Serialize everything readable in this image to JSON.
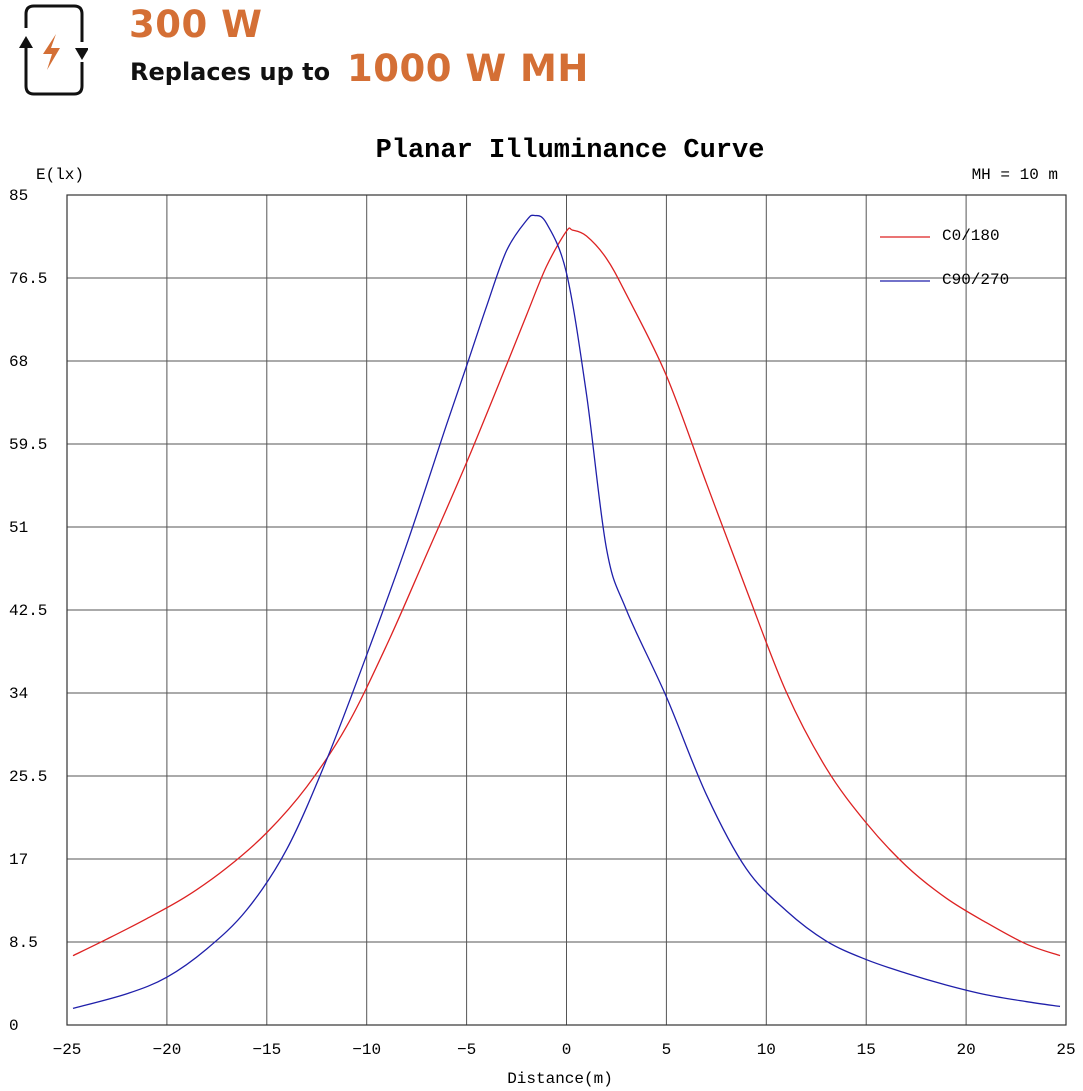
{
  "header": {
    "power": "300 W",
    "replaces_label": "Replaces up to",
    "replaces_value": "1000 W MH",
    "icon": "power-cycle-lightning-icon",
    "accent_color": "#d46f35"
  },
  "chart_data": {
    "type": "line",
    "title": "Planar Illuminance Curve",
    "xlabel": "Distance(m)",
    "ylabel": "E(lx)",
    "annotation": "MH = 10 m",
    "xlim": [
      -25,
      25
    ],
    "ylim": [
      0,
      85
    ],
    "x_ticks": [
      -25,
      -20,
      -15,
      -10,
      -5,
      0,
      5,
      10,
      15,
      20,
      25
    ],
    "y_ticks": [
      0,
      8.5,
      17,
      25.5,
      34,
      42.5,
      51,
      59.5,
      68,
      76.5,
      85
    ],
    "grid": true,
    "legend_position": "top-right",
    "series": [
      {
        "name": "C0/180",
        "color": "#dd2222",
        "x": [
          -24.7,
          -23,
          -21,
          -19,
          -17,
          -15,
          -13,
          -11,
          -9,
          -7,
          -5,
          -3,
          -2,
          -1,
          0,
          0.3,
          1,
          2,
          3,
          5,
          7,
          9,
          11,
          13,
          15,
          17,
          19,
          21,
          23,
          24.7
        ],
        "y": [
          7.1,
          8.8,
          10.9,
          13.2,
          16.1,
          19.7,
          24.4,
          30.6,
          38.9,
          48.2,
          57.6,
          67.6,
          72.7,
          77.7,
          81.3,
          81.4,
          80.8,
          78.5,
          74.8,
          66.5,
          55.5,
          44.6,
          34.1,
          26.3,
          20.7,
          16.3,
          13.0,
          10.5,
          8.3,
          7.1
        ]
      },
      {
        "name": "C90/270",
        "color": "#1f1faa",
        "x": [
          -24.7,
          -22,
          -20,
          -18,
          -16,
          -14,
          -12,
          -10,
          -8,
          -6,
          -5,
          -4,
          -3,
          -2,
          -1.6,
          -1,
          0,
          1,
          2,
          3,
          5,
          7,
          9,
          11,
          13,
          15,
          17,
          19,
          21,
          23,
          24.7
        ],
        "y": [
          1.7,
          3.2,
          4.9,
          7.8,
          11.8,
          18.0,
          27.2,
          37.9,
          49.2,
          61.5,
          67.5,
          73.6,
          79.3,
          82.4,
          82.9,
          82.1,
          77.0,
          64.6,
          48.8,
          42.5,
          33.6,
          23.6,
          16.0,
          11.7,
          8.6,
          6.7,
          5.3,
          4.1,
          3.1,
          2.4,
          1.9
        ]
      }
    ]
  }
}
